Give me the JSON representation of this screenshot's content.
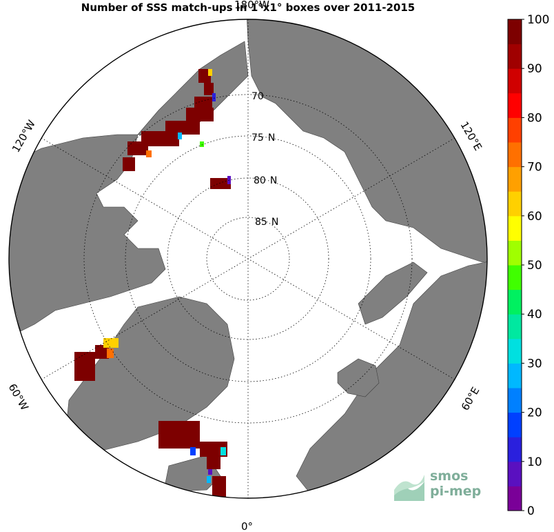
{
  "title": "Number of SSS match-ups in 1°x1° boxes over 2011-2015",
  "map": {
    "projection": "north-polar-stereographic",
    "latitude_labels": [
      "70",
      "75",
      "80",
      "85"
    ],
    "latitude_suffix": "N",
    "longitude_labels": {
      "top": "180°W",
      "upper_left": "120°W",
      "upper_right": "120°E",
      "lower_left": "60°W",
      "lower_right": "60°E",
      "bottom": "0°"
    },
    "colors": {
      "land": "#808080",
      "ocean": "#ffffff",
      "grid": "#000000"
    }
  },
  "colorbar": {
    "ticks": [
      "0",
      "10",
      "20",
      "30",
      "40",
      "50",
      "60",
      "70",
      "80",
      "90",
      "100"
    ],
    "min": 0,
    "max": 100,
    "colors": [
      "#7a0098",
      "#5a10c0",
      "#2a20dd",
      "#0040ff",
      "#0080ff",
      "#00b8ff",
      "#00e0e0",
      "#00e8a0",
      "#00f060",
      "#40ff00",
      "#a0ff00",
      "#ffff00",
      "#ffd000",
      "#ffa000",
      "#ff7000",
      "#ff4000",
      "#ff0000",
      "#d00000",
      "#a00000",
      "#7d0000"
    ]
  },
  "logo": {
    "line1": "smos",
    "line2": "pi-mep"
  }
}
